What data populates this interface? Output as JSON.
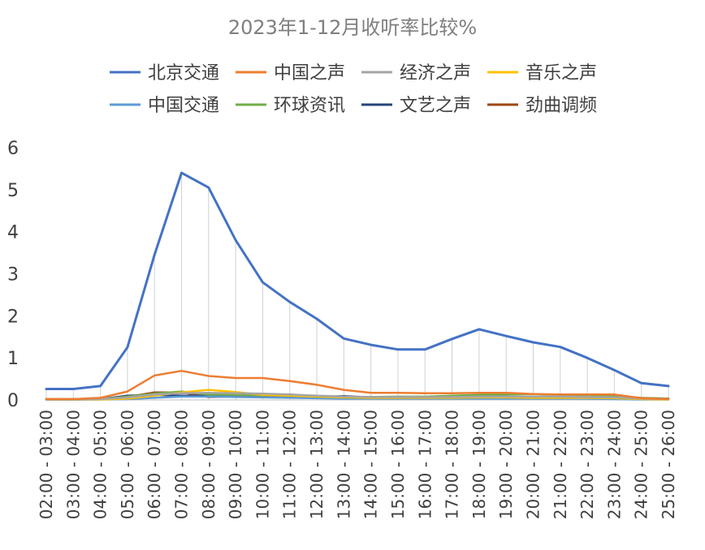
{
  "chart_data": {
    "type": "line",
    "title": "2023年1-12月收听率比较%",
    "xlabel": "",
    "ylabel": "",
    "ylim": [
      0,
      6
    ],
    "yticks": [
      0,
      1,
      2,
      3,
      4,
      5,
      6
    ],
    "grid": "vertical drop lines",
    "legend_position": "top",
    "categories": [
      "02:00 - 03:00",
      "03:00 - 04:00",
      "04:00 - 05:00",
      "05:00 - 06:00",
      "06:00 - 07:00",
      "07:00 - 08:00",
      "08:00 - 09:00",
      "09:00 - 10:00",
      "10:00 - 11:00",
      "11:00 - 12:00",
      "12:00 - 13:00",
      "13:00 - 14:00",
      "14:00 - 15:00",
      "15:00 - 16:00",
      "16:00 - 17:00",
      "17:00 - 18:00",
      "18:00 - 19:00",
      "19:00 - 20:00",
      "20:00 - 21:00",
      "21:00 - 22:00",
      "22:00 - 23:00",
      "23:00 - 24:00",
      "24:00 - 25:00",
      "25:00 - 26:00"
    ],
    "series": [
      {
        "name": "北京交通",
        "color": "#4472c4",
        "values": [
          0.26,
          0.26,
          0.33,
          1.25,
          3.45,
          5.4,
          5.05,
          3.8,
          2.8,
          2.33,
          1.93,
          1.46,
          1.31,
          1.2,
          1.2,
          1.45,
          1.68,
          1.52,
          1.37,
          1.26,
          1.0,
          0.71,
          0.4,
          0.33
        ]
      },
      {
        "name": "中国之声",
        "color": "#ed7d31",
        "values": [
          0.02,
          0.02,
          0.05,
          0.2,
          0.58,
          0.69,
          0.57,
          0.52,
          0.52,
          0.45,
          0.36,
          0.24,
          0.17,
          0.17,
          0.16,
          0.16,
          0.17,
          0.17,
          0.14,
          0.13,
          0.13,
          0.13,
          0.04,
          0.02
        ]
      },
      {
        "name": "经济之声",
        "color": "#a5a5a5",
        "values": [
          0.01,
          0.01,
          0.02,
          0.06,
          0.13,
          0.16,
          0.17,
          0.16,
          0.15,
          0.13,
          0.1,
          0.08,
          0.07,
          0.07,
          0.07,
          0.07,
          0.08,
          0.08,
          0.08,
          0.08,
          0.07,
          0.06,
          0.03,
          0.02
        ]
      },
      {
        "name": "音乐之声",
        "color": "#ffc000",
        "values": [
          0.01,
          0.01,
          0.01,
          0.03,
          0.1,
          0.18,
          0.24,
          0.19,
          0.12,
          0.1,
          0.08,
          0.06,
          0.05,
          0.05,
          0.05,
          0.05,
          0.06,
          0.06,
          0.05,
          0.05,
          0.05,
          0.04,
          0.02,
          0.01
        ]
      },
      {
        "name": "中国交通",
        "color": "#5b9bd5",
        "values": [
          0.01,
          0.01,
          0.01,
          0.02,
          0.05,
          0.08,
          0.08,
          0.07,
          0.06,
          0.05,
          0.04,
          0.03,
          0.03,
          0.03,
          0.03,
          0.03,
          0.03,
          0.03,
          0.03,
          0.03,
          0.03,
          0.02,
          0.01,
          0.01
        ]
      },
      {
        "name": "环球资讯",
        "color": "#70ad47",
        "values": [
          0.01,
          0.01,
          0.02,
          0.08,
          0.15,
          0.2,
          0.13,
          0.12,
          0.11,
          0.1,
          0.08,
          0.07,
          0.07,
          0.08,
          0.08,
          0.1,
          0.12,
          0.13,
          0.14,
          0.12,
          0.11,
          0.09,
          0.05,
          0.03
        ]
      },
      {
        "name": "文艺之声",
        "color": "#264478",
        "values": [
          0.01,
          0.01,
          0.02,
          0.1,
          0.12,
          0.1,
          0.1,
          0.13,
          0.13,
          0.13,
          0.07,
          0.09,
          0.06,
          0.05,
          0.05,
          0.06,
          0.06,
          0.06,
          0.06,
          0.06,
          0.06,
          0.06,
          0.04,
          0.03
        ]
      },
      {
        "name": "劲曲调频",
        "color": "#9e480e",
        "values": [
          0.02,
          0.02,
          0.03,
          0.07,
          0.18,
          0.18,
          0.07,
          0.08,
          0.08,
          0.08,
          0.06,
          0.05,
          0.05,
          0.06,
          0.06,
          0.07,
          0.09,
          0.08,
          0.06,
          0.06,
          0.06,
          0.05,
          0.04,
          0.03
        ]
      }
    ]
  }
}
